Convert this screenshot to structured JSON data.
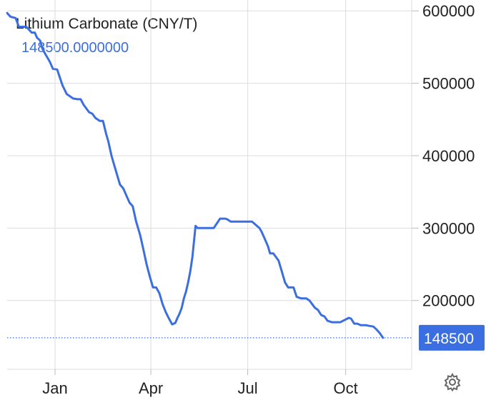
{
  "header": {
    "title": "Lithium Carbonate (CNY/T)",
    "current_value": "148500.0000000"
  },
  "colors": {
    "line": "#3b6ee0",
    "badge": "#3b6ee0",
    "grid": "#dddddd",
    "text": "#222222"
  },
  "settings_icon": "gear-icon",
  "chart_data": {
    "type": "line",
    "title": "Lithium Carbonate (CNY/T)",
    "xlabel": "",
    "ylabel": "",
    "x_tick_labels": [
      "Jan",
      "Apr",
      "Jul",
      "Oct"
    ],
    "x_tick_dates": [
      "2023-01-01",
      "2023-04-01",
      "2023-07-01",
      "2023-10-01"
    ],
    "xlim": [
      "2022-11-17",
      "2023-12-02"
    ],
    "y_tick_labels": [
      "600000",
      "500000",
      "400000",
      "300000",
      "200000"
    ],
    "y_ticks": [
      600000,
      500000,
      400000,
      300000,
      200000
    ],
    "ylim": [
      105000,
      615000
    ],
    "last_value_label": "148500",
    "last_value": 148500,
    "grid": true,
    "series": [
      {
        "x": [
          "2022-11-17",
          "2022-11-20",
          "2022-11-25",
          "2022-11-28",
          "2022-12-05",
          "2022-12-10",
          "2022-12-13",
          "2022-12-15",
          "2022-12-18",
          "2022-12-20",
          "2022-12-23",
          "2022-12-27",
          "2022-12-30",
          "2023-01-03",
          "2023-01-05",
          "2023-01-08",
          "2023-01-12",
          "2023-01-15",
          "2023-01-18",
          "2023-01-22",
          "2023-01-25",
          "2023-01-28",
          "2023-02-02",
          "2023-02-05",
          "2023-02-08",
          "2023-02-12",
          "2023-02-15",
          "2023-02-18",
          "2023-02-20",
          "2023-02-23",
          "2023-02-26",
          "2023-03-01",
          "2023-03-03",
          "2023-03-06",
          "2023-03-09",
          "2023-03-12",
          "2023-03-15",
          "2023-03-18",
          "2023-03-22",
          "2023-03-25",
          "2023-03-28",
          "2023-03-31",
          "2023-04-03",
          "2023-04-06",
          "2023-04-09",
          "2023-04-12",
          "2023-04-15",
          "2023-04-18",
          "2023-04-21",
          "2023-04-24",
          "2023-04-26",
          "2023-04-28",
          "2023-04-30",
          "2023-05-02",
          "2023-05-04",
          "2023-05-06",
          "2023-05-08",
          "2023-05-10",
          "2023-05-13",
          "2023-05-15",
          "2023-05-17",
          "2023-05-19",
          "2023-05-21",
          "2023-05-23",
          "2023-05-25",
          "2023-05-27",
          "2023-05-30",
          "2023-06-05",
          "2023-06-10",
          "2023-06-12",
          "2023-06-15",
          "2023-06-20",
          "2023-06-23",
          "2023-06-26",
          "2023-07-05",
          "2023-07-12",
          "2023-07-14",
          "2023-07-17",
          "2023-07-20",
          "2023-07-22",
          "2023-07-25",
          "2023-07-30",
          "2023-08-02",
          "2023-08-05",
          "2023-08-08",
          "2023-08-10",
          "2023-08-13",
          "2023-08-16",
          "2023-08-20",
          "2023-08-25",
          "2023-08-28",
          "2023-09-02",
          "2023-09-05",
          "2023-09-08",
          "2023-09-11",
          "2023-09-14",
          "2023-09-18",
          "2023-09-22",
          "2023-09-26",
          "2023-10-04",
          "2023-10-06",
          "2023-10-09",
          "2023-10-12",
          "2023-10-15",
          "2023-10-20",
          "2023-10-23",
          "2023-10-27",
          "2023-10-30",
          "2023-11-02",
          "2023-11-05"
        ],
        "y": [
          597000,
          592000,
          590000,
          578000,
          578000,
          570000,
          570000,
          563000,
          559000,
          548000,
          540000,
          530000,
          520000,
          519000,
          510000,
          497000,
          485000,
          482000,
          479000,
          478000,
          478000,
          470000,
          460000,
          458000,
          452000,
          448000,
          448000,
          430000,
          420000,
          400000,
          385000,
          370000,
          360000,
          355000,
          345000,
          335000,
          330000,
          310000,
          290000,
          270000,
          250000,
          233000,
          218000,
          218000,
          210000,
          195000,
          184000,
          175000,
          167000,
          169000,
          176000,
          182000,
          190000,
          203000,
          212000,
          225000,
          240000,
          260000,
          303000,
          300000,
          300000,
          300000,
          300000,
          300000,
          300000,
          300000,
          300000,
          313000,
          313000,
          312000,
          309000,
          309000,
          309000,
          309000,
          309000,
          300000,
          295000,
          285000,
          275000,
          265000,
          265000,
          255000,
          240000,
          225000,
          218000,
          218000,
          218000,
          205000,
          203000,
          203000,
          200000,
          190000,
          187000,
          180000,
          178000,
          172000,
          170000,
          170000,
          170000,
          176000,
          175000,
          168000,
          168000,
          166000,
          166000,
          165000,
          164000,
          160000,
          155000,
          148500
        ]
      }
    ]
  }
}
